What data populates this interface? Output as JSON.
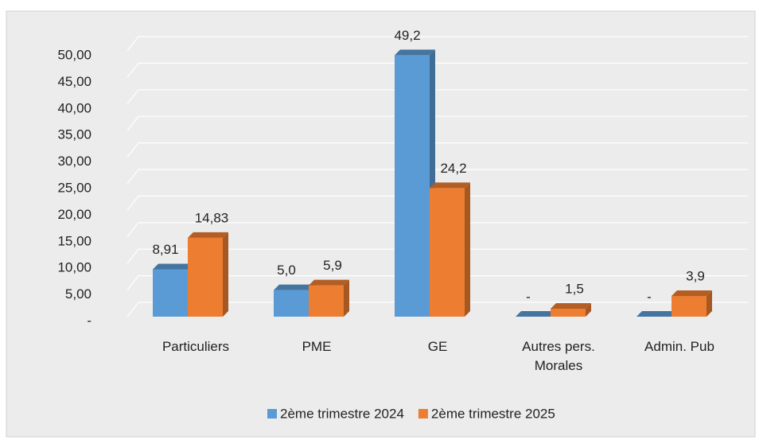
{
  "chart_data": {
    "type": "bar3d",
    "categories": [
      "Particuliers",
      "PME",
      "GE",
      "Autres pers. Morales",
      "Admin. Pub"
    ],
    "series": [
      {
        "name": "2ème trimestre 2024",
        "color": "#5b9bd5",
        "values": [
          8.91,
          5.0,
          49.2,
          0,
          0
        ],
        "value_labels": [
          "8,91",
          "5,0",
          "49,2",
          "-",
          "-"
        ]
      },
      {
        "name": "2ème trimestre 2025",
        "color": "#ed7d31",
        "values": [
          14.83,
          5.9,
          24.2,
          1.5,
          3.9
        ],
        "value_labels": [
          "14,83",
          "5,9",
          "24,2",
          "1,5",
          "3,9"
        ]
      }
    ],
    "ylim": [
      0,
      50
    ],
    "yticks": [
      {
        "value": 0,
        "label": "-"
      },
      {
        "value": 5,
        "label": "5,00"
      },
      {
        "value": 10,
        "label": "10,00"
      },
      {
        "value": 15,
        "label": "15,00"
      },
      {
        "value": 20,
        "label": "20,00"
      },
      {
        "value": 25,
        "label": "25,00"
      },
      {
        "value": 30,
        "label": "30,00"
      },
      {
        "value": 35,
        "label": "35,00"
      },
      {
        "value": 40,
        "label": "40,00"
      },
      {
        "value": 45,
        "label": "45,00"
      },
      {
        "value": 50,
        "label": "50,00"
      }
    ],
    "grid": true,
    "legend": "bottom"
  }
}
